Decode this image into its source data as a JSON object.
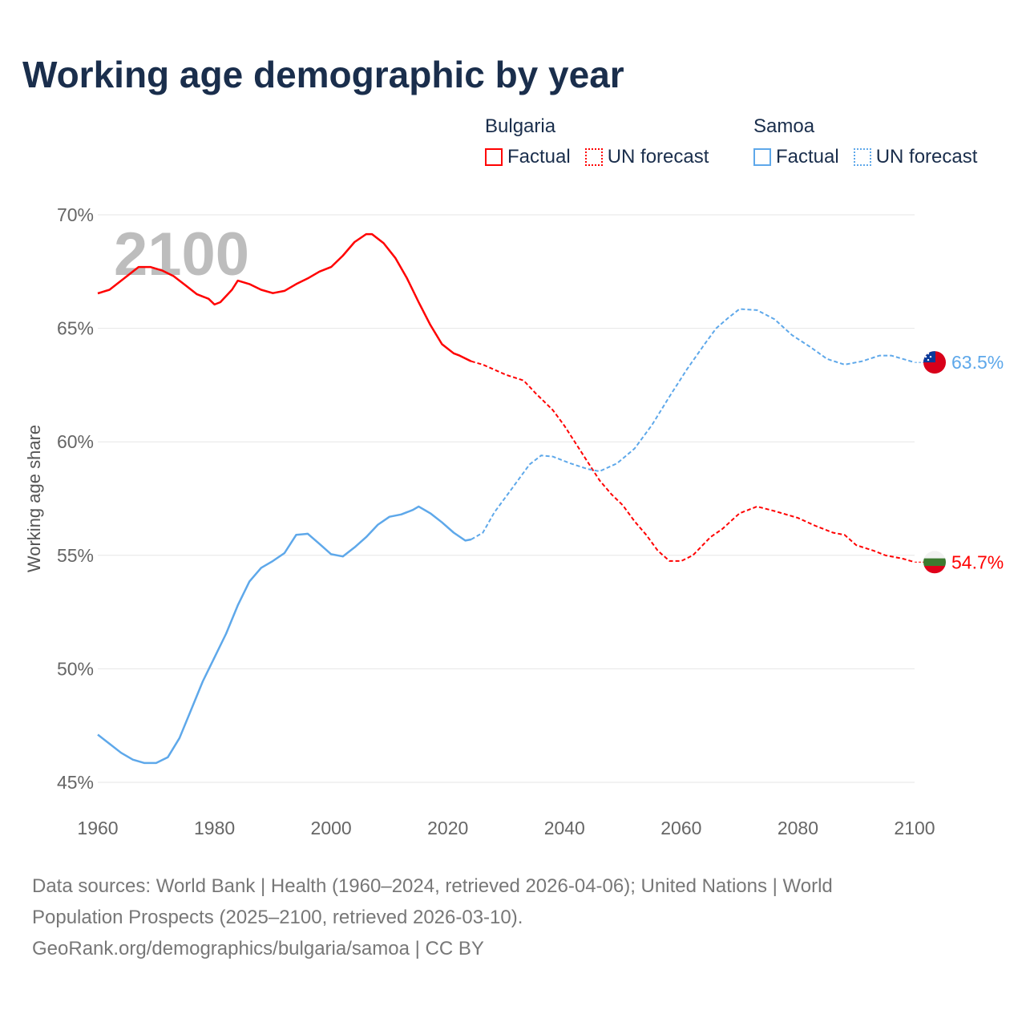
{
  "title": "Working age demographic by year",
  "legend": {
    "groups": [
      {
        "country": "Bulgaria",
        "factual": "Factual",
        "forecast": "UN forecast",
        "color": "#ff0000"
      },
      {
        "country": "Samoa",
        "factual": "Factual",
        "forecast": "UN forecast",
        "color": "#5ea8ea"
      }
    ]
  },
  "year_watermark": "2100",
  "footer": {
    "line1": "Data sources: World Bank | Health (1960–2024, retrieved 2026-04-06); United Nations | World",
    "line2": "Population Prospects (2025–2100, retrieved 2026-03-10).",
    "line3": "GeoRank.org/demographics/bulgaria/samoa | CC BY"
  },
  "chart_data": {
    "type": "line",
    "title": "Working age demographic by year",
    "xlabel": "",
    "ylabel": "Working age share",
    "xlim": [
      1960,
      2100
    ],
    "ylim": [
      45,
      70
    ],
    "x_ticks": [
      "1960",
      "1980",
      "2000",
      "2020",
      "2040",
      "2060",
      "2080",
      "2100"
    ],
    "y_ticks": [
      "45%",
      "50%",
      "55%",
      "60%",
      "65%",
      "70%"
    ],
    "grid": true,
    "forecast_start": 2024,
    "series": [
      {
        "name": "Bulgaria",
        "color": "#ff0000",
        "end_label": "54.7%",
        "x": [
          1960,
          1962,
          1965,
          1967,
          1969,
          1971,
          1973,
          1975,
          1977,
          1979,
          1980,
          1981,
          1983,
          1984,
          1986,
          1988,
          1990,
          1992,
          1994,
          1996,
          1998,
          2000,
          2002,
          2004,
          2006,
          2007,
          2009,
          2011,
          2013,
          2015,
          2017,
          2019,
          2021,
          2022,
          2024,
          2026,
          2030,
          2033,
          2035,
          2038,
          2040,
          2042,
          2044,
          2046,
          2048,
          2050,
          2052,
          2054,
          2056,
          2058,
          2060,
          2062,
          2065,
          2067,
          2070,
          2073,
          2076,
          2080,
          2083,
          2086,
          2088,
          2090,
          2093,
          2095,
          2098,
          2100
        ],
        "y": [
          66.54,
          66.7,
          67.3,
          67.7,
          67.7,
          67.55,
          67.3,
          66.9,
          66.5,
          66.3,
          66.05,
          66.15,
          66.7,
          67.1,
          66.95,
          66.7,
          66.55,
          66.65,
          66.95,
          67.2,
          67.5,
          67.7,
          68.2,
          68.8,
          69.15,
          69.15,
          68.75,
          68.1,
          67.2,
          66.15,
          65.15,
          64.3,
          63.9,
          63.8,
          63.55,
          63.4,
          62.95,
          62.7,
          62.15,
          61.4,
          60.7,
          59.9,
          59.1,
          58.3,
          57.7,
          57.2,
          56.5,
          55.9,
          55.2,
          54.75,
          54.75,
          55.0,
          55.8,
          56.15,
          56.85,
          57.15,
          56.95,
          56.65,
          56.3,
          56.0,
          55.9,
          55.45,
          55.2,
          55.0,
          54.85,
          54.7
        ]
      },
      {
        "name": "Samoa",
        "color": "#5ea8ea",
        "end_label": "63.5%",
        "x": [
          1960,
          1962,
          1964,
          1966,
          1968,
          1970,
          1972,
          1974,
          1976,
          1978,
          1980,
          1982,
          1984,
          1986,
          1988,
          1990,
          1992,
          1994,
          1996,
          1998,
          2000,
          2002,
          2004,
          2006,
          2008,
          2010,
          2012,
          2014,
          2015,
          2017,
          2019,
          2021,
          2023,
          2024,
          2026,
          2028,
          2031,
          2034,
          2036,
          2038,
          2041,
          2044,
          2046,
          2049,
          2052,
          2055,
          2058,
          2061,
          2064,
          2066,
          2068,
          2070,
          2073,
          2076,
          2079,
          2082,
          2085,
          2088,
          2091,
          2094,
          2096,
          2098,
          2100
        ],
        "y": [
          47.1,
          46.7,
          46.3,
          46.0,
          45.85,
          45.85,
          46.1,
          46.95,
          48.2,
          49.45,
          50.5,
          51.55,
          52.8,
          53.85,
          54.45,
          54.75,
          55.1,
          55.9,
          55.95,
          55.5,
          55.05,
          54.95,
          55.35,
          55.8,
          56.35,
          56.7,
          56.8,
          57.0,
          57.15,
          56.85,
          56.45,
          56.0,
          55.65,
          55.7,
          56.0,
          56.9,
          57.95,
          59.0,
          59.4,
          59.35,
          59.05,
          58.8,
          58.7,
          59.05,
          59.7,
          60.75,
          62.0,
          63.2,
          64.3,
          65.0,
          65.45,
          65.85,
          65.8,
          65.4,
          64.7,
          64.2,
          63.65,
          63.4,
          63.55,
          63.8,
          63.8,
          63.65,
          63.5
        ]
      }
    ]
  }
}
